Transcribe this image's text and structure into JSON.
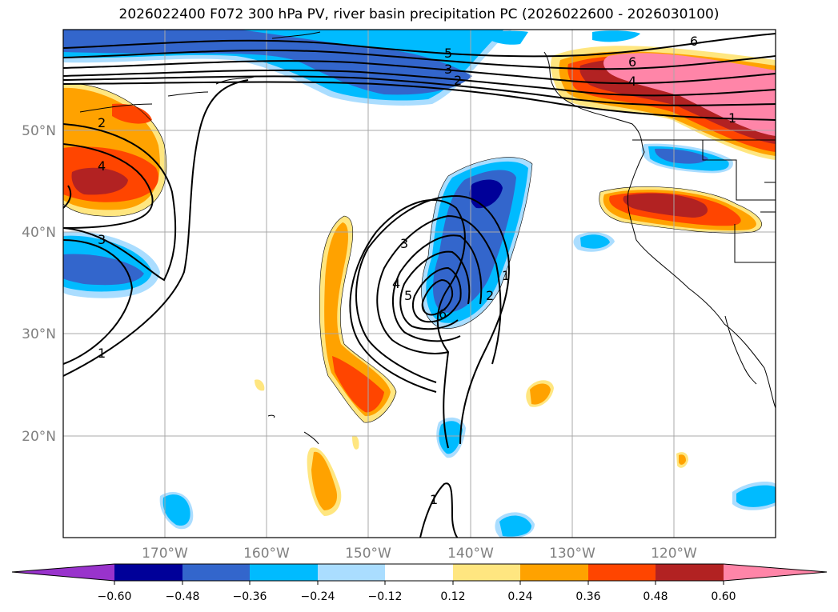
{
  "title": "2026022400 F072 300 hPa PV, river basin precipitation PC (2026022600 - 2026030100)",
  "lat_labels": [
    "50°N",
    "40°N",
    "30°N",
    "20°N"
  ],
  "lon_labels": [
    "170°W",
    "160°W",
    "150°W",
    "140°W",
    "130°W",
    "120°W"
  ],
  "pv_contour_labels": [
    "6",
    "5",
    "4",
    "3",
    "2",
    "1"
  ],
  "colorbar": {
    "ticks": [
      "−0.60",
      "−0.48",
      "−0.36",
      "−0.24",
      "−0.12",
      "0.12",
      "0.24",
      "0.36",
      "0.48",
      "0.60"
    ],
    "colors": [
      "#9933cc",
      "#000099",
      "#3366cc",
      "#00bbff",
      "#aaddff",
      "#ffffff",
      "#ffe680",
      "#ffa200",
      "#ff4500",
      "#b22222",
      "#ff85a8"
    ]
  }
}
